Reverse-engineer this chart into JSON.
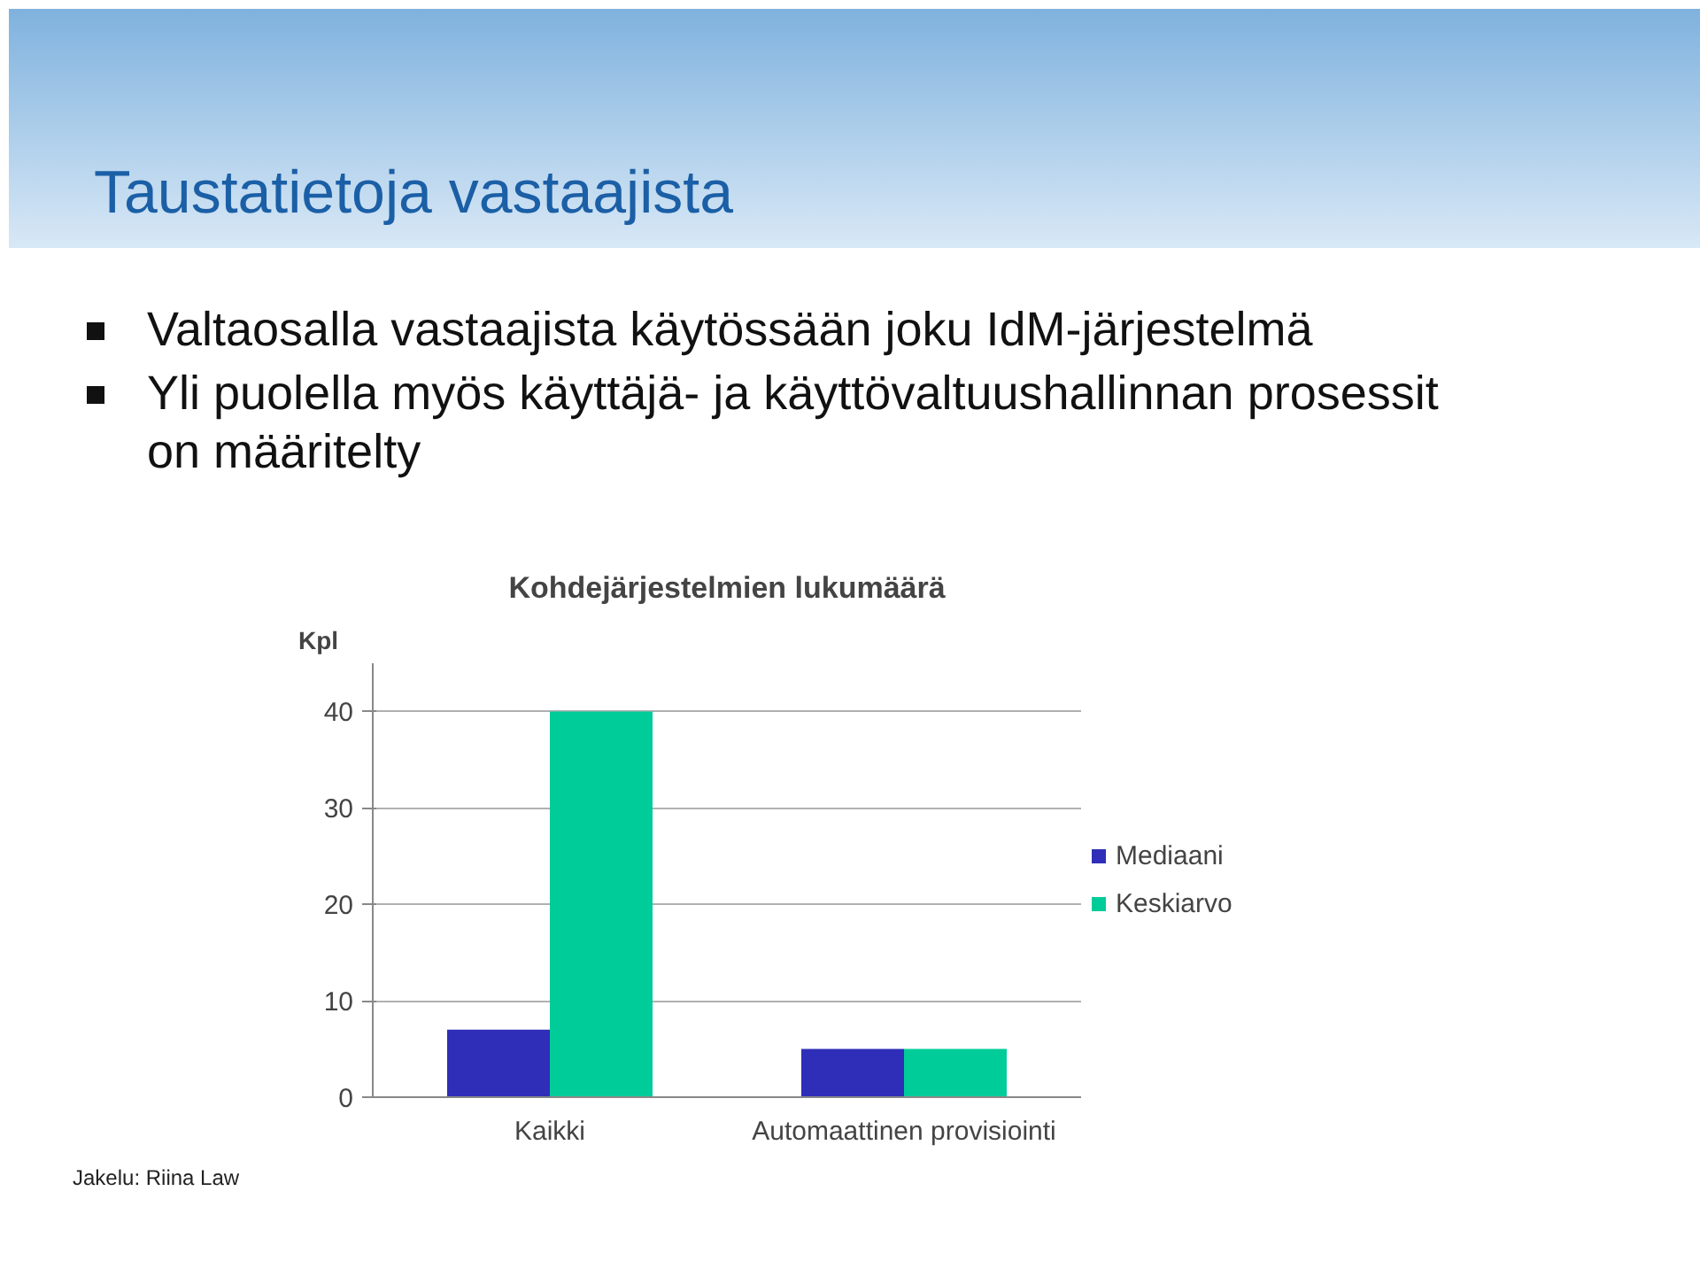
{
  "chart_data": {
    "type": "bar",
    "title": "Taustatietoja vastaajista",
    "subtitle": "Kohdejärjestelmien lukumäärä",
    "ylabel": "Kpl",
    "annotations": [
      "Valtaosalla vastaajista käytössään joku IdM-järjestelmä",
      "Yli puolella myös käyttäjä- ja käyttövaltuushallinnan prosessit on määritelty",
      "Jakelu: Riina Law"
    ],
    "categories": [
      "Kaikki",
      "Automaattinen provisiointi"
    ],
    "series": [
      {
        "name": "Mediaani",
        "color": "#2e2eb8",
        "values": [
          7,
          5
        ]
      },
      {
        "name": "Keskiarvo",
        "color": "#00cc99",
        "values": [
          40,
          5
        ]
      }
    ],
    "ylim": [
      0,
      45
    ],
    "yticks": [
      0,
      10,
      20,
      30,
      40
    ],
    "grid": "y",
    "legend": "right"
  }
}
